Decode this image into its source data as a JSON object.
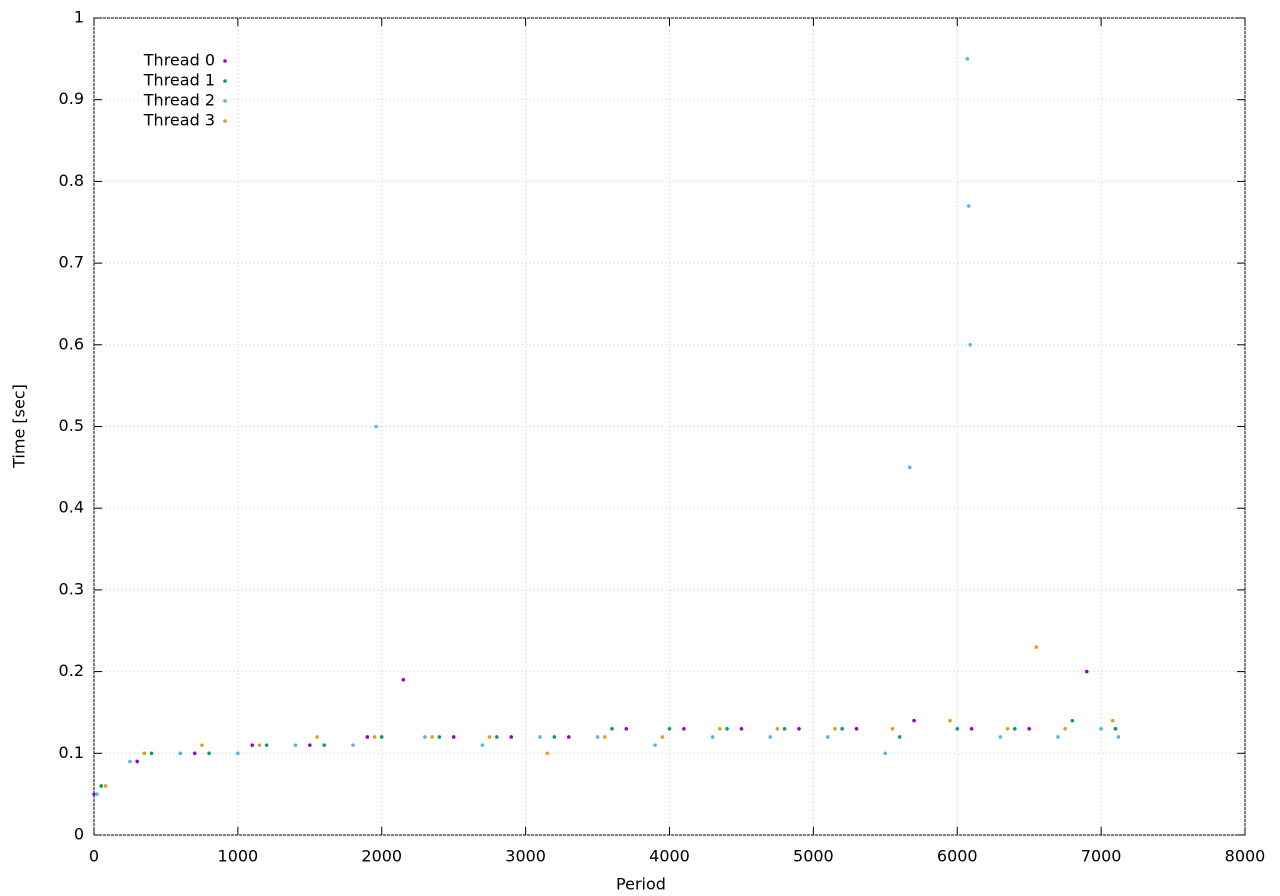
{
  "chart_data": {
    "type": "scatter",
    "xlabel": "Period",
    "ylabel": "Time [sec]",
    "xlim": [
      0,
      8000
    ],
    "xticks": [
      0,
      1000,
      2000,
      3000,
      4000,
      5000,
      6000,
      7000,
      8000
    ],
    "ylim": [
      0,
      1
    ],
    "yticks": [
      0,
      0.1,
      0.2,
      0.3,
      0.4,
      0.5,
      0.6,
      0.7,
      0.8,
      0.9,
      1
    ],
    "grid": true,
    "legend": "top-left",
    "series": [
      {
        "name": "Thread 0",
        "color": "#9400d3",
        "x": [
          0,
          300,
          700,
          1100,
          1500,
          1900,
          2150,
          2500,
          2900,
          3300,
          3700,
          4100,
          4500,
          4900,
          5300,
          5700,
          6100,
          6500,
          6900,
          7100
        ],
        "values": [
          0.05,
          0.09,
          0.1,
          0.11,
          0.11,
          0.12,
          0.19,
          0.12,
          0.12,
          0.12,
          0.13,
          0.13,
          0.13,
          0.13,
          0.13,
          0.14,
          0.13,
          0.13,
          0.2,
          0.13
        ]
      },
      {
        "name": "Thread 1",
        "color": "#009e73",
        "x": [
          50,
          400,
          800,
          1200,
          1600,
          2000,
          2400,
          2800,
          3200,
          3600,
          4000,
          4400,
          4800,
          5200,
          5600,
          6000,
          6400,
          6800,
          7100
        ],
        "values": [
          0.06,
          0.1,
          0.1,
          0.11,
          0.11,
          0.12,
          0.12,
          0.12,
          0.12,
          0.13,
          0.13,
          0.13,
          0.13,
          0.13,
          0.12,
          0.13,
          0.13,
          0.14,
          0.13
        ]
      },
      {
        "name": "Thread 2",
        "color": "#56b4e9",
        "x": [
          20,
          250,
          600,
          1000,
          1400,
          1800,
          1960,
          2300,
          2700,
          3100,
          3500,
          3900,
          4300,
          4700,
          5100,
          5500,
          5670,
          6070,
          6080,
          6090,
          6300,
          6700,
          7000,
          7120
        ],
        "values": [
          0.05,
          0.09,
          0.1,
          0.1,
          0.11,
          0.11,
          0.5,
          0.12,
          0.11,
          0.12,
          0.12,
          0.11,
          0.12,
          0.12,
          0.12,
          0.1,
          0.45,
          0.95,
          0.77,
          0.6,
          0.12,
          0.12,
          0.13,
          0.12
        ]
      },
      {
        "name": "Thread 3",
        "color": "#e69f00",
        "x": [
          80,
          350,
          750,
          1150,
          1550,
          1950,
          2350,
          2750,
          3150,
          3550,
          3950,
          4350,
          4750,
          5150,
          5550,
          5950,
          6350,
          6550,
          6750,
          7080
        ],
        "values": [
          0.06,
          0.1,
          0.11,
          0.11,
          0.12,
          0.12,
          0.12,
          0.12,
          0.1,
          0.12,
          0.12,
          0.13,
          0.13,
          0.13,
          0.13,
          0.14,
          0.13,
          0.23,
          0.13,
          0.14
        ]
      }
    ]
  }
}
